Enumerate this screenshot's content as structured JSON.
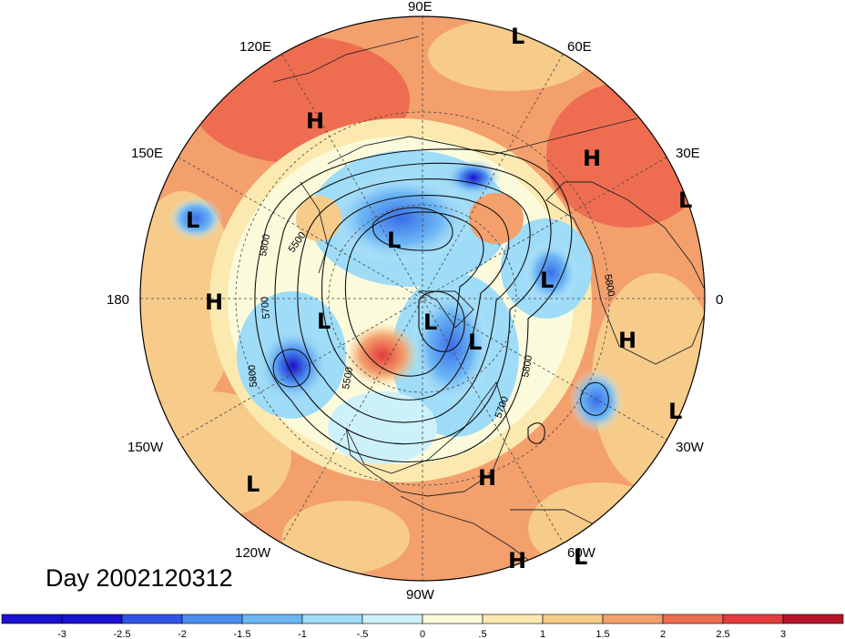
{
  "title": "Day 2002120312",
  "map": {
    "projection": "north-polar-stereographic",
    "longitude_labels": [
      "90E",
      "60E",
      "30E",
      "0",
      "30W",
      "60W",
      "90W",
      "120W",
      "150W",
      "180",
      "150E",
      "120E"
    ],
    "contour_labels": [
      "5800",
      "5500",
      "5700",
      "5800",
      "5500",
      "5700",
      "5800",
      "5800"
    ],
    "centers": [
      {
        "type": "L"
      },
      {
        "type": "H"
      },
      {
        "type": "H"
      },
      {
        "type": "L"
      },
      {
        "type": "L"
      },
      {
        "type": "L"
      },
      {
        "type": "H"
      },
      {
        "type": "L"
      },
      {
        "type": "L"
      },
      {
        "type": "L"
      },
      {
        "type": "L"
      },
      {
        "type": "H"
      },
      {
        "type": "L"
      },
      {
        "type": "L"
      },
      {
        "type": "H"
      },
      {
        "type": "H"
      },
      {
        "type": "L"
      }
    ]
  },
  "colorbar": {
    "tick_labels": [
      "-3",
      "-2.5",
      "-2",
      "-1.5",
      "-1",
      "-.5",
      "0",
      ".5",
      "1",
      "1.5",
      "2",
      "2.5",
      "3"
    ],
    "colors": [
      "#1a12cc",
      "#2f55e6",
      "#4a8ef0",
      "#6cb6f5",
      "#9fdcf7",
      "#cdf1fa",
      "#fbfbdc",
      "#fbe9b0",
      "#f7cb8a",
      "#f3a06d",
      "#ee6d50",
      "#e33b3b",
      "#b51428"
    ]
  }
}
